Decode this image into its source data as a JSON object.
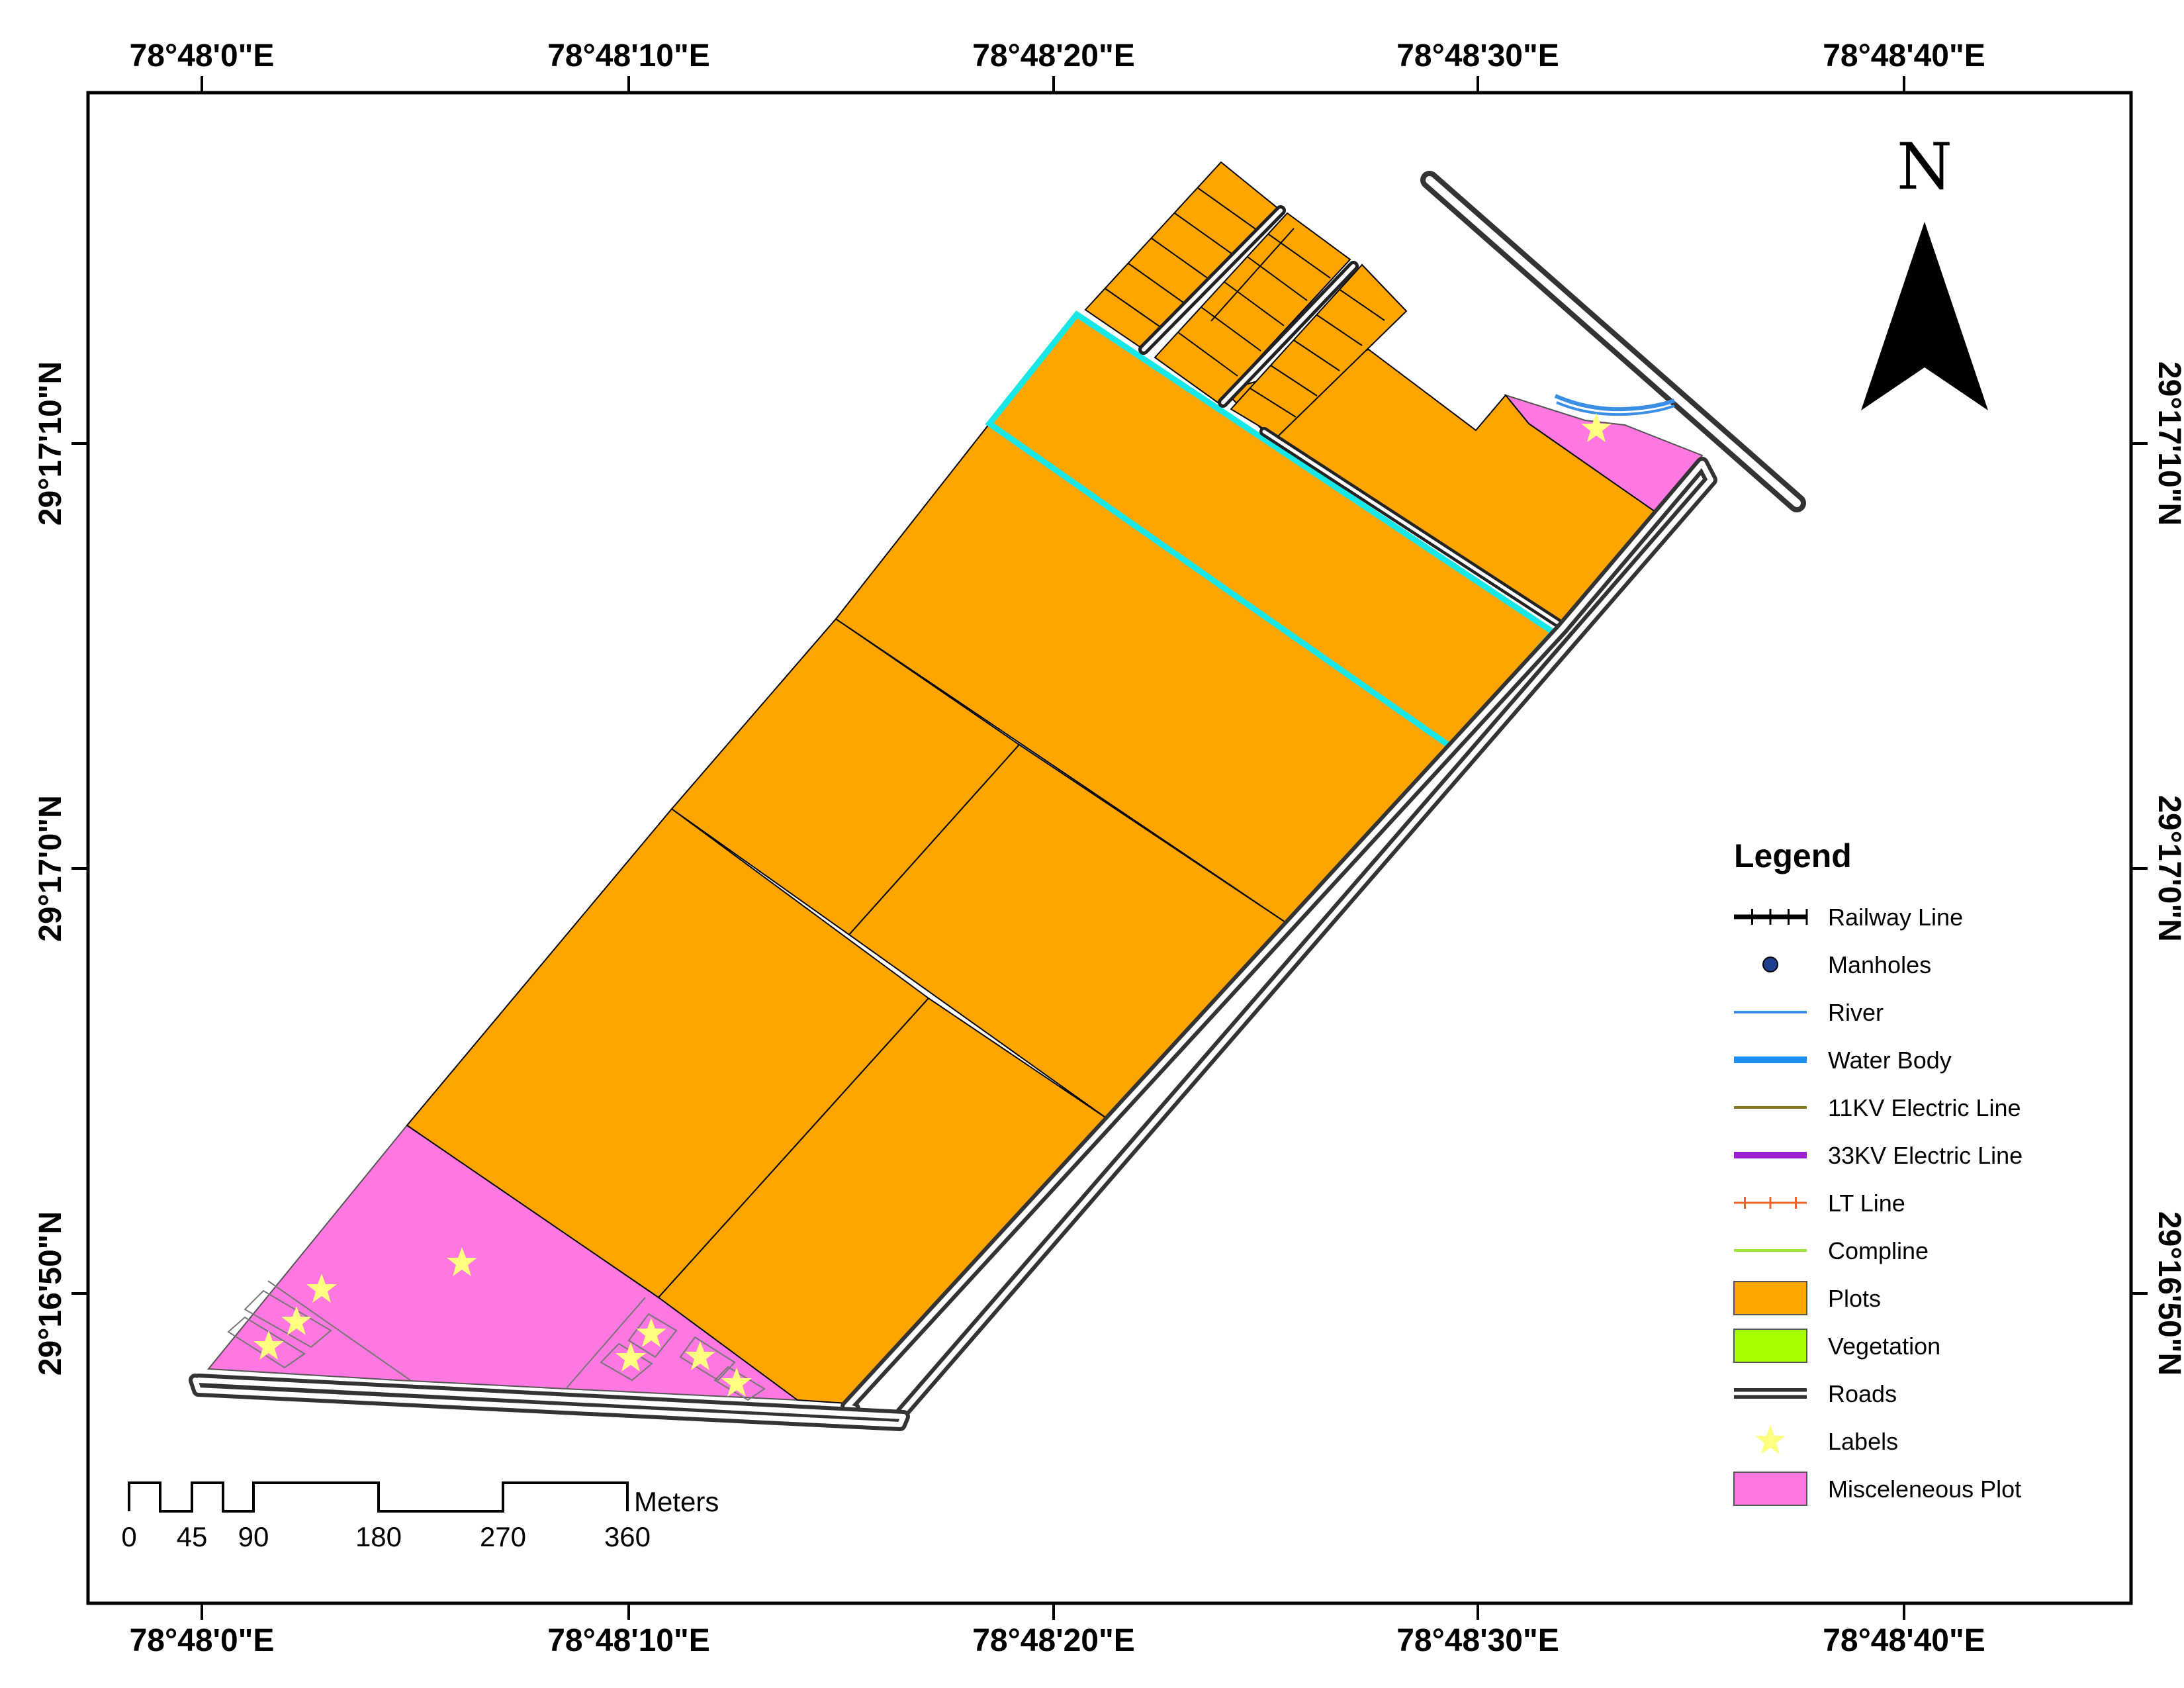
{
  "map": {
    "top_ticks": [
      "78°48'0\"E",
      "78°48'10\"E",
      "78°48'20\"E",
      "78°48'30\"E",
      "78°48'40\"E"
    ],
    "bottom_ticks": [
      "78°48'0\"E",
      "78°48'10\"E",
      "78°48'20\"E",
      "78°48'30\"E",
      "78°48'40\"E"
    ],
    "left_ticks": [
      "29°17'10\"N",
      "29°17'0\"N",
      "29°16'50\"N"
    ],
    "right_ticks": [
      "29°17'10\"N",
      "29°17'0\"N",
      "29°16'50\"N"
    ],
    "north_label": "N"
  },
  "legend": {
    "title": "Legend",
    "items": [
      {
        "label": "Railway Line",
        "symbol": "railway",
        "color": "#000000"
      },
      {
        "label": "Manholes",
        "symbol": "point",
        "color": "#1f3f8f"
      },
      {
        "label": "River",
        "symbol": "line",
        "color": "#3a8ee6"
      },
      {
        "label": "Water Body",
        "symbol": "thickline",
        "color": "#1e8ef0"
      },
      {
        "label": "11KV Electric Line",
        "symbol": "line",
        "color": "#8a7a1e"
      },
      {
        "label": "33KV Electric Line",
        "symbol": "thickline",
        "color": "#9b1fd4"
      },
      {
        "label": "LT Line",
        "symbol": "ltline",
        "color": "#f0642a"
      },
      {
        "label": "Compline",
        "symbol": "line",
        "color": "#9be63a"
      },
      {
        "label": "Plots",
        "symbol": "box",
        "color": "#ffa500"
      },
      {
        "label": "Vegetation",
        "symbol": "box",
        "color": "#a6ff00"
      },
      {
        "label": "Roads",
        "symbol": "road",
        "color": "#333333"
      },
      {
        "label": "Labels",
        "symbol": "star",
        "color": "#ffff80"
      },
      {
        "label": "Misceleneous Plot",
        "symbol": "box",
        "color": "#ff77e0"
      }
    ]
  },
  "scalebar": {
    "labels": [
      "0",
      "45",
      "90",
      "180",
      "270",
      "360"
    ],
    "unit": "Meters"
  },
  "colors": {
    "plot": "#ffa500",
    "misc_plot": "#ff77e0",
    "highlight": "#19e6e6",
    "road": "#333333",
    "label_star": "#ffff80"
  }
}
